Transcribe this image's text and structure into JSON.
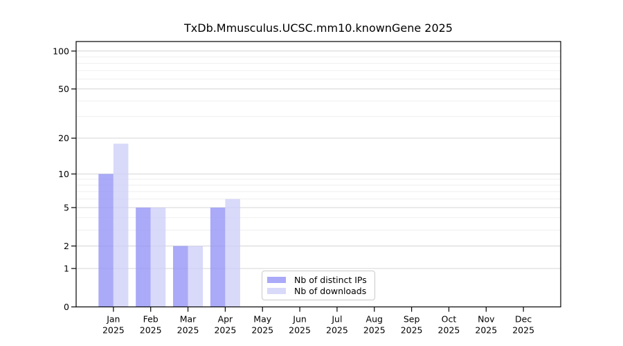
{
  "chart_data": {
    "type": "bar",
    "title": "TxDb.Mmusculus.UCSC.mm10.knownGene 2025",
    "categories": [
      "Jan",
      "Feb",
      "Mar",
      "Apr",
      "May",
      "Jun",
      "Jul",
      "Aug",
      "Sep",
      "Oct",
      "Nov",
      "Dec"
    ],
    "x_tick_second_line": "2025",
    "series": [
      {
        "name": "Nb of distinct IPs",
        "color": "#9292f6",
        "opacity": 0.78,
        "values": [
          10,
          5,
          2,
          5,
          0,
          0,
          0,
          0,
          0,
          0,
          0,
          0
        ]
      },
      {
        "name": "Nb of downloads",
        "color": "#cecef9",
        "opacity": 0.78,
        "values": [
          18,
          5,
          2,
          6,
          0,
          0,
          0,
          0,
          0,
          0,
          0,
          0
        ]
      }
    ],
    "y_scale": "log1p",
    "y_ticks": [
      0,
      1,
      2,
      5,
      10,
      20,
      50,
      100
    ],
    "y_minor_ticks": [
      3,
      4,
      6,
      7,
      8,
      9,
      30,
      40,
      60,
      70,
      80,
      90
    ],
    "ylim": [
      0,
      119
    ],
    "grid": {
      "major_color": "#d4d4d4",
      "minor_color": "#efefef"
    },
    "axis_color": "#000000",
    "text_color": "#000000",
    "legend_location": "lower center"
  }
}
